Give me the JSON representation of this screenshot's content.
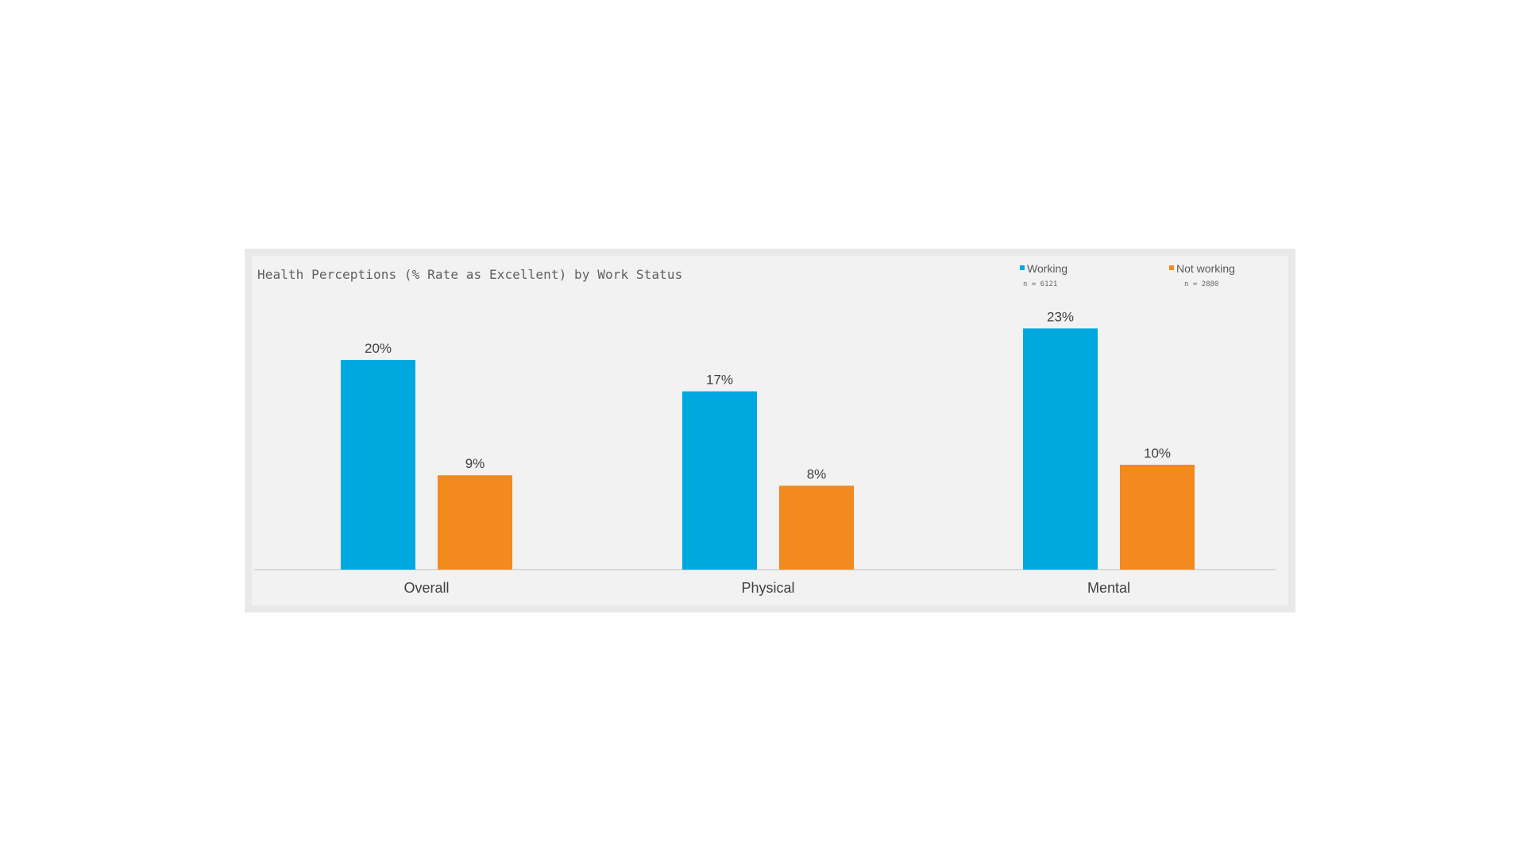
{
  "chart_data": {
    "type": "bar",
    "title": "Health Perceptions (% Rate as Excellent) by Work Status",
    "categories": [
      "Overall",
      "Physical",
      "Mental"
    ],
    "series": [
      {
        "name": "Working",
        "n_label": "n = 6121",
        "color": "#00a8e0",
        "values": [
          20,
          17,
          23
        ],
        "labels": [
          "20%",
          "17%",
          "23%"
        ]
      },
      {
        "name": "Not working",
        "n_label": "n = 2880",
        "color": "#f28a1e",
        "values": [
          9,
          8,
          10
        ],
        "labels": [
          "9%",
          "8%",
          "10%"
        ]
      }
    ],
    "ylim": [
      0,
      25
    ],
    "grid": false,
    "legend_position": "top-right",
    "xlabel": "",
    "ylabel": ""
  }
}
